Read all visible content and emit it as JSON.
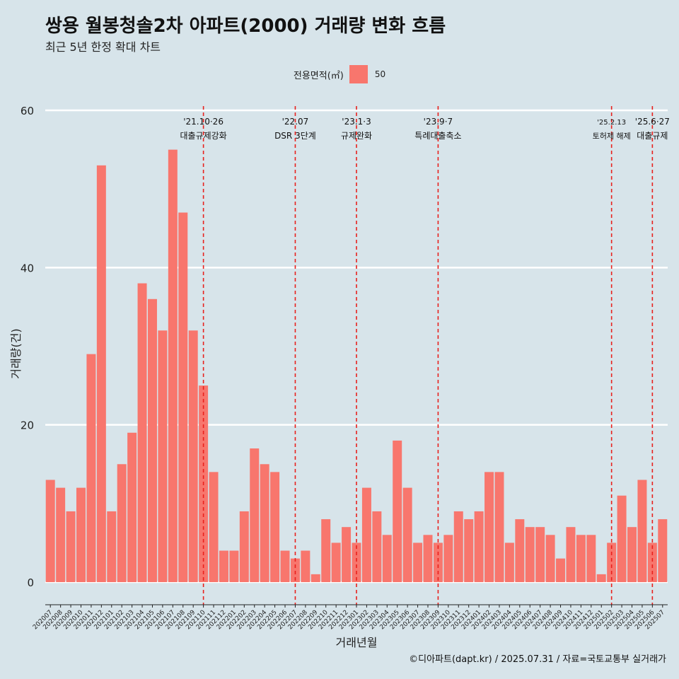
{
  "chart_data": {
    "type": "bar",
    "title": "쌍용 월봉청솔2차 아파트(2000) 거래량 변화 흐름",
    "subtitle": "최근 5년 한정 확대 차트",
    "xlabel": "거래년월",
    "ylabel": "거래량(건)",
    "ylim": [
      0,
      60
    ],
    "yticks": [
      0,
      20,
      40,
      60
    ],
    "grid": true,
    "legend": {
      "title": "전용면적(㎡)",
      "position": "top",
      "entries": [
        "50"
      ]
    },
    "bar_color": "#f8766d",
    "vline_color": "#e8211d",
    "categories": [
      "202007",
      "202008",
      "202009",
      "202010",
      "202011",
      "202012",
      "202101",
      "202102",
      "202103",
      "202104",
      "202105",
      "202106",
      "202107",
      "202108",
      "202109",
      "202110",
      "202111",
      "202112",
      "202201",
      "202202",
      "202203",
      "202204",
      "202205",
      "202206",
      "202207",
      "202208",
      "202209",
      "202210",
      "202211",
      "202212",
      "202301",
      "202302",
      "202303",
      "202304",
      "202305",
      "202306",
      "202307",
      "202308",
      "202309",
      "202310",
      "202311",
      "202312",
      "202401",
      "202402",
      "202403",
      "202404",
      "202405",
      "202406",
      "202407",
      "202408",
      "202409",
      "202410",
      "202411",
      "202412",
      "202501",
      "202502",
      "202503",
      "202504",
      "202505",
      "202506",
      "202507"
    ],
    "series": [
      {
        "name": "50",
        "values": [
          13,
          12,
          9,
          12,
          29,
          53,
          9,
          15,
          19,
          38,
          36,
          32,
          55,
          47,
          32,
          25,
          14,
          4,
          4,
          9,
          17,
          15,
          14,
          4,
          3,
          4,
          1,
          8,
          5,
          7,
          5,
          12,
          9,
          6,
          18,
          12,
          5,
          6,
          5,
          6,
          9,
          8,
          9,
          14,
          14,
          5,
          8,
          7,
          7,
          6,
          3,
          7,
          6,
          6,
          1,
          5,
          11,
          7,
          13,
          5,
          8
        ]
      }
    ],
    "annotations": [
      {
        "x": 15.0,
        "date": "'21.10·26",
        "label": "대출규제강화"
      },
      {
        "x": 24.0,
        "date": "'22.07",
        "label": "DSR 3단계"
      },
      {
        "x": 30.0,
        "date": "'23.1·3",
        "label": "규제완화"
      },
      {
        "x": 38.0,
        "date": "'23.9·7",
        "label": "특례대출축소"
      },
      {
        "x": 55.0,
        "date": "'25.2.13",
        "label": "토허제 해제"
      },
      {
        "x": 59.0,
        "date": "'25.6·27",
        "label": "대출규제"
      }
    ]
  },
  "caption": "©디아파트(dapt.kr) / 2025.07.31 / 자료=국토교통부 실거래가"
}
